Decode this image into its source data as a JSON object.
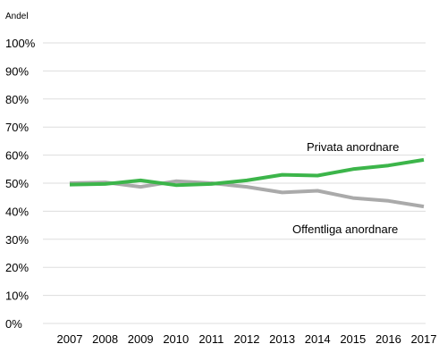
{
  "chart_data": {
    "type": "line",
    "ylabel": "Andel",
    "xlabel": "",
    "title": "",
    "x": [
      "2007",
      "2008",
      "2009",
      "2010",
      "2011",
      "2012",
      "2013",
      "2014",
      "2015",
      "2016",
      "2017"
    ],
    "y_ticks": [
      "0%",
      "10%",
      "20%",
      "30%",
      "40%",
      "50%",
      "60%",
      "70%",
      "80%",
      "90%",
      "100%"
    ],
    "ylim": [
      0,
      100
    ],
    "grid": "horizontal",
    "series": [
      {
        "name": "Privata anordnare",
        "color": "#3cb54a",
        "values": [
          49.5,
          49.7,
          51.0,
          49.3,
          49.7,
          51.0,
          53.0,
          52.7,
          55.0,
          56.3,
          58.3
        ]
      },
      {
        "name": "Offentliga anordnare",
        "color": "#aaaaaa",
        "values": [
          50.0,
          50.3,
          48.7,
          50.7,
          50.0,
          48.7,
          46.7,
          47.3,
          44.7,
          43.7,
          41.7
        ]
      }
    ]
  }
}
